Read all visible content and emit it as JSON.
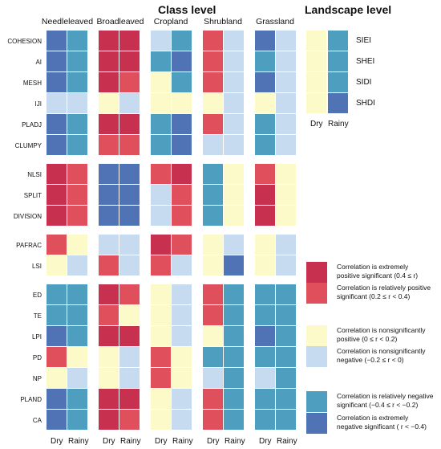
{
  "titles": {
    "class_level": "Class level",
    "landscape_level": "Landscape level"
  },
  "columns": [
    "Needleleaved",
    "Broadleaved",
    "Cropland",
    "Shrubland",
    "Grassland"
  ],
  "seasons": {
    "dry": "Dry",
    "rainy": "Rainy"
  },
  "colors": {
    "A": "#c7304f",
    "B": "#e04f5c",
    "C": "#fcfac8",
    "D": "#c6dbef",
    "E": "#4e9ebf",
    "F": "#4f73b4"
  },
  "groups": [
    {
      "rows": [
        {
          "name": "COHESION",
          "cells": [
            "F",
            "E",
            "A",
            "A",
            "D",
            "E",
            "B",
            "D",
            "F",
            "D"
          ]
        },
        {
          "name": "AI",
          "cells": [
            "F",
            "E",
            "A",
            "A",
            "E",
            "F",
            "B",
            "D",
            "E",
            "D"
          ]
        },
        {
          "name": "MESH",
          "cells": [
            "F",
            "E",
            "A",
            "B",
            "C",
            "E",
            "B",
            "D",
            "F",
            "D"
          ]
        },
        {
          "name": "IJI",
          "cells": [
            "D",
            "D",
            "C",
            "D",
            "C",
            "C",
            "C",
            "D",
            "C",
            "D"
          ]
        },
        {
          "name": "PLADJ",
          "cells": [
            "F",
            "E",
            "A",
            "A",
            "E",
            "F",
            "B",
            "D",
            "E",
            "D"
          ]
        },
        {
          "name": "CLUMPY",
          "cells": [
            "F",
            "E",
            "B",
            "B",
            "E",
            "F",
            "D",
            "D",
            "E",
            "D"
          ]
        }
      ]
    },
    {
      "rows": [
        {
          "name": "NLSI",
          "cells": [
            "A",
            "B",
            "F",
            "F",
            "B",
            "A",
            "E",
            "C",
            "B",
            "C"
          ]
        },
        {
          "name": "SPLIT",
          "cells": [
            "A",
            "B",
            "F",
            "F",
            "D",
            "B",
            "E",
            "C",
            "A",
            "C"
          ]
        },
        {
          "name": "DIVISION",
          "cells": [
            "A",
            "B",
            "F",
            "F",
            "D",
            "B",
            "E",
            "C",
            "A",
            "C"
          ]
        }
      ]
    },
    {
      "rows": [
        {
          "name": "PAFRAC",
          "cells": [
            "B",
            "C",
            "D",
            "D",
            "A",
            "B",
            "C",
            "D",
            "C",
            "D"
          ]
        },
        {
          "name": "LSI",
          "cells": [
            "C",
            "D",
            "B",
            "D",
            "B",
            "D",
            "C",
            "F",
            "C",
            "D"
          ]
        }
      ]
    },
    {
      "rows": [
        {
          "name": "ED",
          "cells": [
            "E",
            "E",
            "A",
            "B",
            "C",
            "D",
            "B",
            "E",
            "E",
            "E"
          ]
        },
        {
          "name": "TE",
          "cells": [
            "E",
            "E",
            "B",
            "C",
            "C",
            "D",
            "B",
            "E",
            "E",
            "E"
          ]
        },
        {
          "name": "LPI",
          "cells": [
            "F",
            "E",
            "A",
            "A",
            "C",
            "D",
            "C",
            "E",
            "F",
            "E"
          ]
        },
        {
          "name": "PD",
          "cells": [
            "B",
            "C",
            "C",
            "D",
            "B",
            "C",
            "E",
            "E",
            "E",
            "E"
          ]
        },
        {
          "name": "NP",
          "cells": [
            "C",
            "D",
            "C",
            "D",
            "B",
            "C",
            "D",
            "E",
            "D",
            "E"
          ]
        },
        {
          "name": "PLAND",
          "cells": [
            "F",
            "E",
            "A",
            "A",
            "C",
            "D",
            "B",
            "E",
            "E",
            "E"
          ]
        },
        {
          "name": "CA",
          "cells": [
            "F",
            "E",
            "A",
            "B",
            "C",
            "D",
            "B",
            "E",
            "E",
            "E"
          ]
        }
      ]
    }
  ],
  "landscape": [
    {
      "name": "SIEI",
      "cells": [
        "C",
        "E"
      ]
    },
    {
      "name": "SHEI",
      "cells": [
        "C",
        "E"
      ]
    },
    {
      "name": "SIDI",
      "cells": [
        "C",
        "E"
      ]
    },
    {
      "name": "SHDI",
      "cells": [
        "C",
        "F"
      ]
    }
  ],
  "legend": [
    {
      "color": "A",
      "lines": [
        "Correlation is extremely",
        "positive significant (0.4 ≤ r)"
      ]
    },
    {
      "color": "B",
      "lines": [
        "Correlation is relatively positive",
        "significant (0.2 ≤ r < 0.4)"
      ]
    },
    {
      "color": "C",
      "lines": [
        "Correlation is nonsignificantly",
        "positive (0 ≤ r < 0.2)"
      ]
    },
    {
      "color": "D",
      "lines": [
        "Correlation is nonsignificantly",
        "negative (−0.2 ≤ r < 0)"
      ]
    },
    {
      "color": "E",
      "lines": [
        "Correlation is  relatively negative",
        "significant (−0.4 ≤ r < −0.2)"
      ]
    },
    {
      "color": "F",
      "lines": [
        "Correlation is extremely",
        "negative significant ( r < −0.4)"
      ]
    }
  ]
}
